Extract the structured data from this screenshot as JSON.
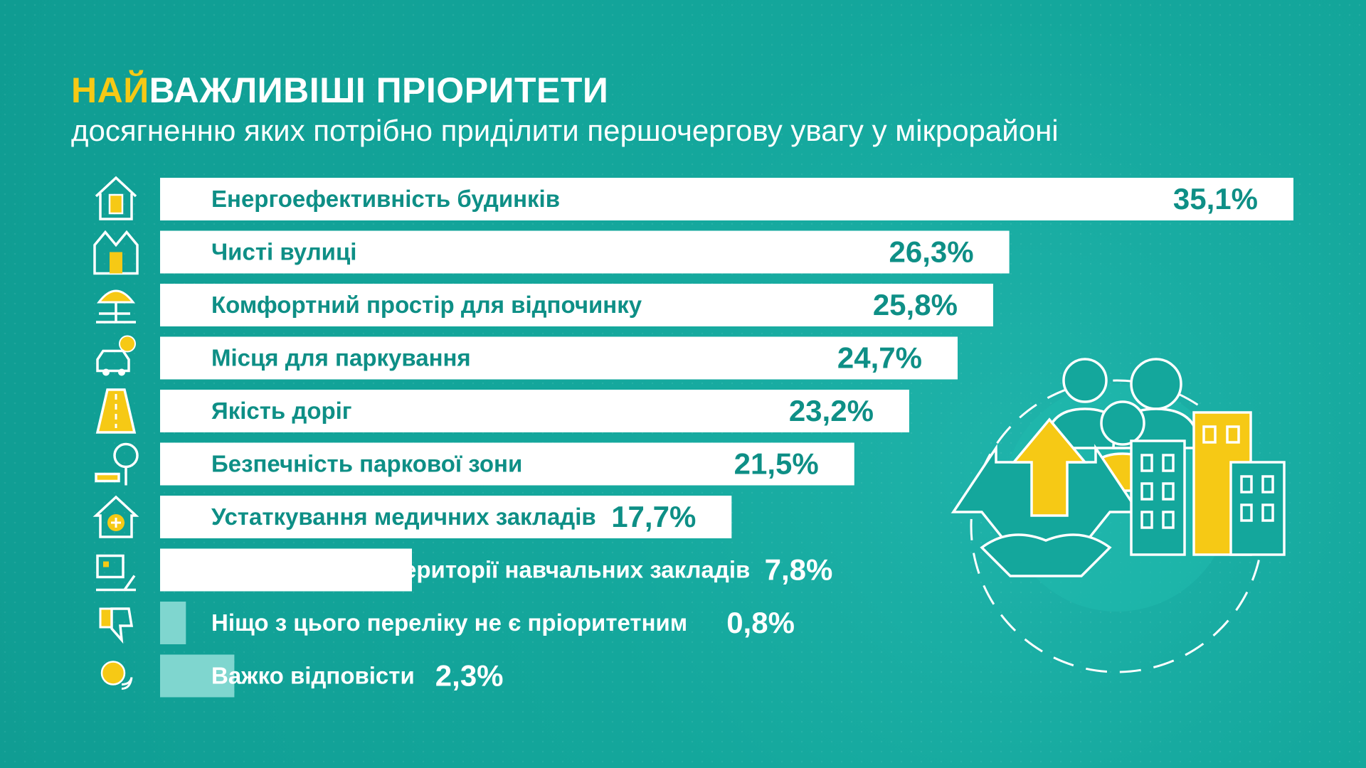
{
  "header": {
    "title_highlight": "НАЙ",
    "title_rest": "ВАЖЛИВІШІ ПРІОРИТЕТИ",
    "subtitle": "досягненню яких потрібно приділити першочергову увагу у мікрорайоні"
  },
  "colors": {
    "background": "#14a79c",
    "accent": "#f6c915",
    "bar": "#ffffff",
    "bar_small": "#7fd6cf",
    "value_text": "#0e8f86"
  },
  "chart_data": {
    "type": "bar",
    "orientation": "horizontal",
    "categories": [
      "Енергоефективність будинків",
      "Чисті вулиці",
      "Комфортний простір для відпочинку",
      "Місця для паркування",
      "Якість доріг",
      "Безпечність паркової зони",
      "Устаткування медичних закладів",
      "Облаштування території навчальних закладів",
      "Ніщо з цього переліку не є пріоритетним",
      "Важко відповісти"
    ],
    "values": [
      35.1,
      26.3,
      25.8,
      24.7,
      23.2,
      21.5,
      17.7,
      7.8,
      0.8,
      2.3
    ],
    "value_labels": [
      "35,1%",
      "26,3%",
      "25,8%",
      "24,7%",
      "23,2%",
      "21,5%",
      "17,7%",
      "7,8%",
      "0,8%",
      "2,3%"
    ],
    "icons": [
      "house-battery-icon",
      "apartment-building-icon",
      "beach-umbrella-icon",
      "parking-car-icon",
      "road-icon",
      "park-bench-icon",
      "medical-house-icon",
      "school-playground-icon",
      "thumbs-down-icon",
      "question-bubble-icon"
    ],
    "xlim": [
      0,
      35.1
    ]
  }
}
